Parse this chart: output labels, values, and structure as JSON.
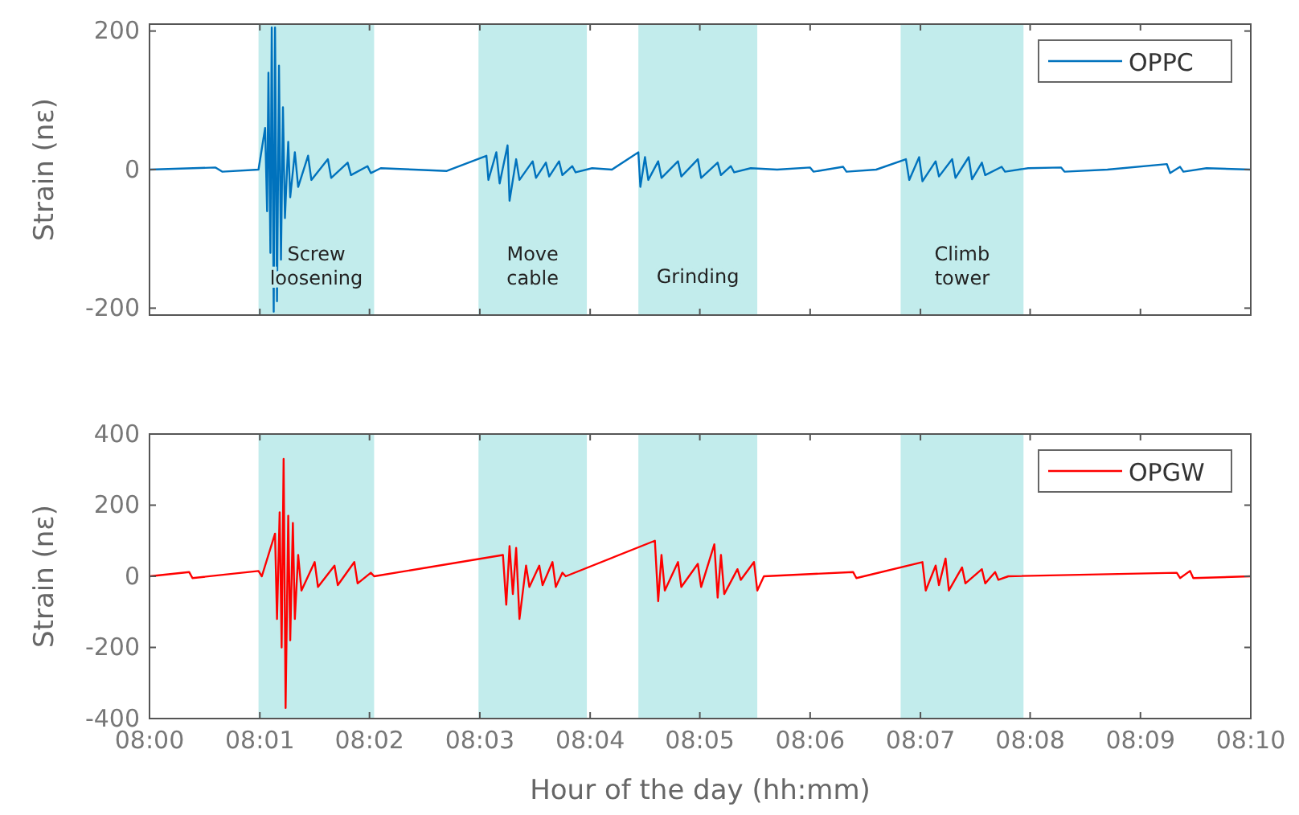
{
  "chart_data": [
    {
      "type": "line",
      "ylabel": "Strain (nε)",
      "xlim": [
        8,
        8.1667
      ],
      "ylim": [
        -210,
        210
      ],
      "yticks": [
        -200,
        0,
        200
      ],
      "xticks": [
        {
          "value": 8,
          "label": null
        },
        {
          "value": 8.0167,
          "label": null
        },
        {
          "value": 8.0333,
          "label": null
        },
        {
          "value": 8.05,
          "label": null
        },
        {
          "value": 8.0667,
          "label": null
        },
        {
          "value": 8.0833,
          "label": null
        },
        {
          "value": 8.1,
          "label": null
        },
        {
          "value": 8.1167,
          "label": null
        },
        {
          "value": 8.1333,
          "label": null
        },
        {
          "value": 8.15,
          "label": null
        },
        {
          "value": 8.1667,
          "label": null
        }
      ],
      "tick_labels": "y",
      "legend": "top right",
      "grid": false,
      "bands": [
        {
          "axis": "x",
          "from": 8.0165,
          "to": 8.034,
          "label": "Screw\nloosening",
          "color": "#c2ecec"
        },
        {
          "axis": "x",
          "from": 8.0498,
          "to": 8.0662,
          "label": "Move\ncable",
          "color": "#c2ecec"
        },
        {
          "axis": "x",
          "from": 8.074,
          "to": 8.092,
          "label": "Grinding",
          "color": "#c2ecec"
        },
        {
          "axis": "x",
          "from": 8.1137,
          "to": 8.1323,
          "label": "Climb\ntower",
          "color": "#c2ecec"
        }
      ],
      "series": [
        {
          "name": "OPPC",
          "color": "#0072bd",
          "x": [
            8,
            8.01,
            8.011,
            8.0165,
            8.0175,
            8.0178,
            8.018,
            8.0183,
            8.0185,
            8.0188,
            8.019,
            8.0193,
            8.0196,
            8.0199,
            8.0202,
            8.0205,
            8.021,
            8.0213,
            8.022,
            8.0225,
            8.024,
            8.0245,
            8.027,
            8.0275,
            8.03,
            8.0305,
            8.033,
            8.0335,
            8.035,
            8.04,
            8.045,
            8.051,
            8.0513,
            8.0525,
            8.053,
            8.0542,
            8.0545,
            8.0555,
            8.056,
            8.058,
            8.0585,
            8.06,
            8.0605,
            8.062,
            8.0625,
            8.064,
            8.0645,
            8.067,
            8.07,
            8.074,
            8.0743,
            8.075,
            8.0755,
            8.077,
            8.0775,
            8.08,
            8.0805,
            8.083,
            8.0835,
            8.086,
            8.0865,
            8.088,
            8.0885,
            8.091,
            8.095,
            8.1,
            8.1005,
            8.105,
            8.1055,
            8.11,
            8.1145,
            8.115,
            8.1165,
            8.117,
            8.119,
            8.1195,
            8.1215,
            8.122,
            8.124,
            8.1245,
            8.126,
            8.1265,
            8.129,
            8.1295,
            8.133,
            8.138,
            8.1385,
            8.145,
            8.154,
            8.1545,
            8.156,
            8.1565,
            8.16,
            8.1667
          ],
          "values": [
            0,
            3,
            -3,
            0,
            60,
            -60,
            140,
            -120,
            205,
            -205,
            205,
            -190,
            150,
            -130,
            90,
            -70,
            40,
            -40,
            25,
            -25,
            20,
            -15,
            15,
            -12,
            10,
            -8,
            5,
            -5,
            2,
            0,
            -2,
            20,
            -15,
            25,
            -20,
            35,
            -45,
            15,
            -15,
            12,
            -12,
            10,
            -10,
            12,
            -8,
            5,
            -4,
            2,
            0,
            25,
            -25,
            18,
            -15,
            12,
            -12,
            12,
            -10,
            15,
            -12,
            10,
            -8,
            5,
            -4,
            2,
            0,
            3,
            -3,
            4,
            -3,
            0,
            15,
            -15,
            18,
            -17,
            12,
            -10,
            15,
            -12,
            18,
            -14,
            10,
            -8,
            4,
            -3,
            2,
            3,
            -3,
            0,
            8,
            -5,
            4,
            -3,
            2,
            0
          ]
        }
      ]
    },
    {
      "type": "line",
      "ylabel": "Strain (nε)",
      "xlabel": "Hour of the day (hh:mm)",
      "xlim": [
        8,
        8.1667
      ],
      "ylim": [
        -400,
        400
      ],
      "yticks": [
        -400,
        -200,
        0,
        200,
        400
      ],
      "xticks": [
        {
          "value": 8,
          "label": "08:00"
        },
        {
          "value": 8.0167,
          "label": "08:01"
        },
        {
          "value": 8.0333,
          "label": "08:02"
        },
        {
          "value": 8.05,
          "label": "08:03"
        },
        {
          "value": 8.0667,
          "label": "08:04"
        },
        {
          "value": 8.0833,
          "label": "08:05"
        },
        {
          "value": 8.1,
          "label": "08:06"
        },
        {
          "value": 8.1167,
          "label": "08:07"
        },
        {
          "value": 8.1333,
          "label": "08:08"
        },
        {
          "value": 8.15,
          "label": "08:09"
        },
        {
          "value": 8.1667,
          "label": "08:10"
        }
      ],
      "legend": "top right",
      "grid": false,
      "bands": [
        {
          "axis": "x",
          "from": 8.0165,
          "to": 8.034,
          "color": "#c2ecec"
        },
        {
          "axis": "x",
          "from": 8.0498,
          "to": 8.0662,
          "color": "#c2ecec"
        },
        {
          "axis": "x",
          "from": 8.074,
          "to": 8.092,
          "color": "#c2ecec"
        },
        {
          "axis": "x",
          "from": 8.1137,
          "to": 8.1323,
          "color": "#c2ecec"
        }
      ],
      "series": [
        {
          "name": "OPGW",
          "color": "#ff0000",
          "x": [
            8,
            8.006,
            8.0065,
            8.0165,
            8.017,
            8.019,
            8.0193,
            8.0197,
            8.02,
            8.0203,
            8.0206,
            8.021,
            8.0213,
            8.0217,
            8.022,
            8.0225,
            8.023,
            8.025,
            8.0255,
            8.028,
            8.0285,
            8.031,
            8.0315,
            8.0335,
            8.034,
            8.0535,
            8.054,
            8.0545,
            8.055,
            8.0555,
            8.056,
            8.057,
            8.0575,
            8.059,
            8.0595,
            8.061,
            8.0615,
            8.0625,
            8.063,
            8.0765,
            8.077,
            8.0775,
            8.078,
            8.08,
            8.0805,
            8.083,
            8.0835,
            8.0855,
            8.086,
            8.0865,
            8.087,
            8.089,
            8.0895,
            8.0915,
            8.092,
            8.093,
            8.1065,
            8.107,
            8.117,
            8.1175,
            8.119,
            8.1195,
            8.1205,
            8.121,
            8.123,
            8.1235,
            8.126,
            8.1265,
            8.128,
            8.1285,
            8.13,
            8.1555,
            8.156,
            8.1575,
            8.158,
            8.1667
          ],
          "values": [
            0,
            12,
            -5,
            15,
            0,
            120,
            -120,
            180,
            -200,
            330,
            -370,
            170,
            -180,
            150,
            -120,
            60,
            -40,
            40,
            -30,
            30,
            -25,
            40,
            -20,
            10,
            0,
            60,
            -80,
            85,
            -50,
            80,
            -120,
            30,
            -30,
            30,
            -25,
            40,
            -30,
            10,
            0,
            100,
            -70,
            60,
            -40,
            40,
            -30,
            35,
            -30,
            90,
            -60,
            60,
            -50,
            20,
            -10,
            40,
            -40,
            0,
            12,
            -5,
            40,
            -40,
            30,
            -25,
            50,
            -40,
            25,
            -20,
            20,
            -20,
            12,
            -10,
            0,
            10,
            -5,
            15,
            -5,
            0
          ]
        }
      ]
    }
  ]
}
